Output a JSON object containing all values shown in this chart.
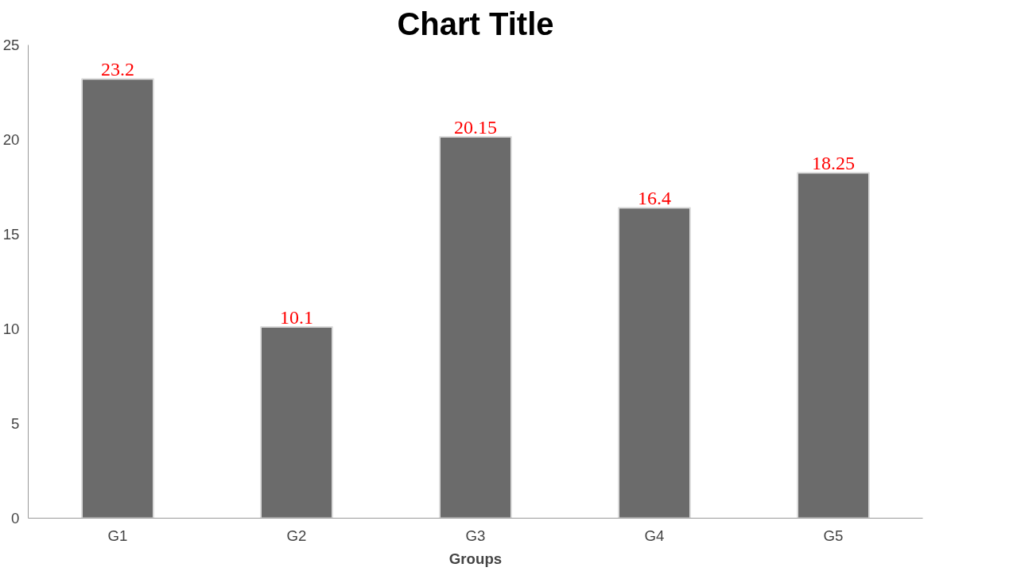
{
  "chart_data": {
    "type": "bar",
    "title": "Chart Title",
    "xlabel": "Groups",
    "categories": [
      "G1",
      "G2",
      "G3",
      "G4",
      "G5"
    ],
    "values": [
      23.2,
      10.1,
      20.15,
      16.4,
      18.25
    ],
    "color": "#6b6b6b",
    "ylim": [
      0,
      25
    ],
    "yticks": [
      0,
      5,
      10,
      15,
      20,
      25
    ],
    "data_labels": true,
    "grid": false
  }
}
